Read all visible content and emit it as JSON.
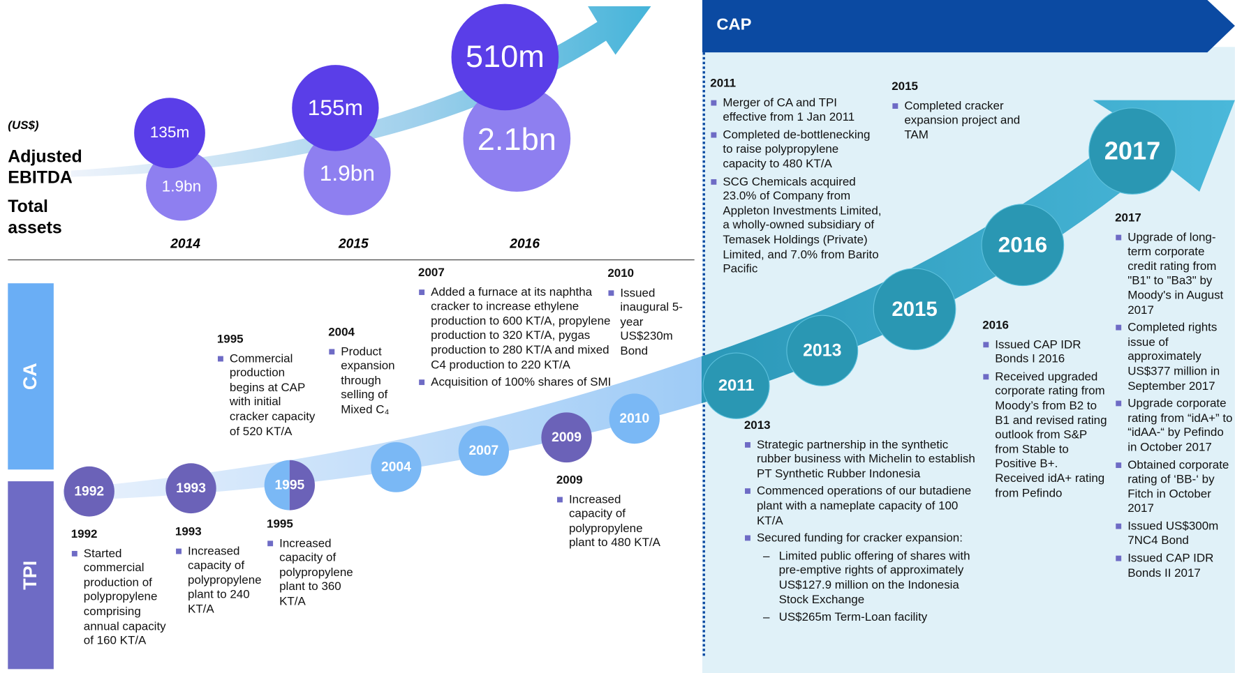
{
  "top_panel": {
    "unit": "(US$)",
    "metrics": [
      "Adjusted EBITDA",
      "Total assets"
    ],
    "years": [
      {
        "year": "2014",
        "ebitda": "135m",
        "total_assets": "1.9bn"
      },
      {
        "year": "2015",
        "ebitda": "155m",
        "total_assets": "1.9bn"
      },
      {
        "year": "2016",
        "ebitda": "510m",
        "total_assets": "2.1bn"
      }
    ]
  },
  "sections": [
    "CA",
    "TPI"
  ],
  "timeline": {
    "circles": [
      "1992",
      "1993",
      "1995",
      "2004",
      "2007",
      "2009",
      "2010"
    ],
    "events": [
      {
        "year": "1992",
        "items": [
          "Started commercial production of polypropylene comprising annual capacity of 160 KT/A"
        ]
      },
      {
        "year": "1993",
        "items": [
          "Increased capacity of polypropylene plant to 240 KT/A"
        ]
      },
      {
        "year": "1995",
        "items": [
          "Increased capacity of polypropylene plant to 360 KT/A"
        ]
      },
      {
        "year": "1995",
        "items": [
          "Commercial production begins at CAP with initial cracker capacity of 520 KT/A"
        ]
      },
      {
        "year": "2004",
        "items": [
          "Product expansion through selling of Mixed C₄"
        ]
      },
      {
        "year": "2007",
        "items": [
          "Added a furnace at its naphtha cracker to increase ethylene production to 600 KT/A, propylene production to 320 KT/A, pygas production to 280 KT/A and mixed C4 production to 220 KT/A",
          "Acquisition of 100% shares of SMI"
        ]
      },
      {
        "year": "2009",
        "items": [
          "Increased capacity of polypropylene plant to 480 KT/A"
        ]
      },
      {
        "year": "2010",
        "items": [
          "Issued inaugural 5-year US$230m Bond"
        ]
      }
    ]
  },
  "cap_panel": {
    "title": "CAP",
    "circles": [
      "2011",
      "2013",
      "2015",
      "2016",
      "2017"
    ],
    "events": [
      {
        "year": "2011",
        "items": [
          "Merger of CA and TPI effective from 1 Jan 2011",
          "Completed de-bottlenecking to raise polypropylene capacity to 480 KT/A",
          "SCG Chemicals acquired 23.0% of Company from Appleton Investments Limited, a wholly-owned subsidiary of Temasek Holdings (Private) Limited, and 7.0% from Barito Pacific"
        ]
      },
      {
        "year": "2015",
        "items": [
          "Completed cracker expansion project and TAM"
        ]
      },
      {
        "year": "2013",
        "items": [
          "Strategic partnership in the synthetic rubber business with Michelin to establish PT Synthetic Rubber Indonesia",
          "Commenced operations of our butadiene plant with a nameplate capacity of 100 KT/A",
          "Secured funding for cracker expansion:"
        ],
        "sub_items": [
          "Limited public offering of shares with pre-emptive rights of approximately US$127.9 million on the Indonesia Stock Exchange",
          "US$265m Term-Loan facility"
        ]
      },
      {
        "year": "2016",
        "items": [
          "Issued CAP IDR Bonds I 2016",
          "Received upgraded corporate rating from Moody’s from B2 to B1 and revised rating outlook from S&P from Stable to Positive B+. Received idA+ rating from Pefindo"
        ]
      },
      {
        "year": "2017",
        "items": [
          "Upgrade of long-term corporate credit rating from \"B1\" to \"Ba3\" by Moody's in August 2017",
          "Completed rights issue of approximately US$377 million in September 2017",
          "Upgrade corporate rating from “idA+” to “idAA-“ by Pefindo in October 2017",
          "Obtained corporate rating of ‘BB-‘ by Fitch in October 2017",
          "Issued US$300m 7NC4 Bond",
          "Issued CAP IDR Bonds II 2017"
        ]
      }
    ]
  }
}
